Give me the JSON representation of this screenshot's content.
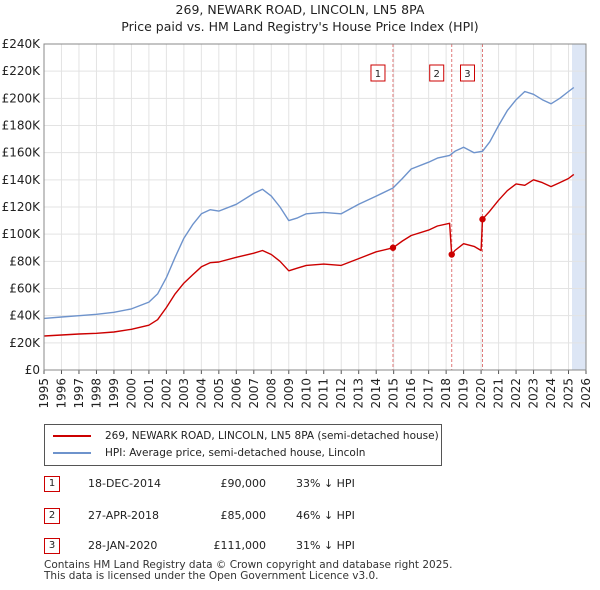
{
  "title_line1": "269, NEWARK ROAD, LINCOLN, LN5 8PA",
  "title_line2": "Price paid vs. HM Land Registry's House Price Index (HPI)",
  "colors": {
    "property": "#cc0000",
    "hpi": "#6e93cc",
    "shade": "#dde6f5",
    "marker": "#cc0000"
  },
  "chart_data": {
    "type": "line",
    "title": "Price paid vs. HM Land Registry's House Price Index (HPI)",
    "xlabel": "",
    "ylabel": "",
    "xlim": [
      1995,
      2026
    ],
    "ylim": [
      0,
      240000
    ],
    "yticks": [
      {
        "value": 0,
        "label": "£0"
      },
      {
        "value": 20000,
        "label": "£20K"
      },
      {
        "value": 40000,
        "label": "£40K"
      },
      {
        "value": 60000,
        "label": "£60K"
      },
      {
        "value": 80000,
        "label": "£80K"
      },
      {
        "value": 100000,
        "label": "£100K"
      },
      {
        "value": 120000,
        "label": "£120K"
      },
      {
        "value": 140000,
        "label": "£140K"
      },
      {
        "value": 160000,
        "label": "£160K"
      },
      {
        "value": 180000,
        "label": "£180K"
      },
      {
        "value": 200000,
        "label": "£200K"
      },
      {
        "value": 220000,
        "label": "£220K"
      },
      {
        "value": 240000,
        "label": "£240K"
      }
    ],
    "xticks": [
      "1995",
      "1996",
      "1997",
      "1998",
      "1999",
      "2000",
      "2001",
      "2002",
      "2003",
      "2004",
      "2005",
      "2006",
      "2007",
      "2008",
      "2009",
      "2010",
      "2011",
      "2012",
      "2013",
      "2014",
      "2015",
      "2016",
      "2017",
      "2018",
      "2019",
      "2020",
      "2021",
      "2022",
      "2023",
      "2024",
      "2025",
      "2026"
    ],
    "shaded_range": [
      2025.2,
      2026
    ],
    "series": [
      {
        "name": "269, NEWARK ROAD, LINCOLN, LN5 8PA (semi-detached house)",
        "color": "#cc0000",
        "x": [
          1995,
          1996,
          1997,
          1998,
          1999,
          2000,
          2001,
          2001.5,
          2002,
          2002.5,
          2003,
          2003.5,
          2004,
          2004.5,
          2005,
          2006,
          2007,
          2007.5,
          2008,
          2008.5,
          2009,
          2009.5,
          2010,
          2011,
          2012,
          2013,
          2014,
          2014.96,
          2015.5,
          2016,
          2017,
          2017.5,
          2018.2,
          2018.32,
          2018.5,
          2019,
          2019.6,
          2020.0,
          2020.08,
          2020.5,
          2021,
          2021.5,
          2022,
          2022.5,
          2023,
          2023.5,
          2024,
          2024.5,
          2025,
          2025.3
        ],
        "values": [
          25000,
          25800,
          26500,
          27000,
          28000,
          30000,
          33000,
          37000,
          46000,
          56000,
          64000,
          70000,
          76000,
          79000,
          79500,
          83000,
          86000,
          88000,
          85000,
          80000,
          73000,
          75000,
          77000,
          78000,
          77000,
          82000,
          87000,
          90000,
          95000,
          99000,
          103000,
          106000,
          108000,
          85000,
          88000,
          93000,
          91000,
          88000,
          111000,
          117000,
          125000,
          132000,
          137000,
          136000,
          140000,
          138000,
          135000,
          138000,
          141000,
          144000
        ]
      },
      {
        "name": "HPI: Average price, semi-detached house, Lincoln",
        "color": "#6e93cc",
        "x": [
          1995,
          1996,
          1997,
          1998,
          1999,
          2000,
          2001,
          2001.5,
          2002,
          2002.5,
          2003,
          2003.5,
          2004,
          2004.5,
          2005,
          2006,
          2007,
          2007.5,
          2008,
          2008.5,
          2009,
          2009.5,
          2010,
          2011,
          2012,
          2013,
          2014,
          2014.96,
          2015.5,
          2016,
          2017,
          2017.5,
          2018.2,
          2018.5,
          2019,
          2019.6,
          2020.08,
          2020.5,
          2021,
          2021.5,
          2022,
          2022.5,
          2023,
          2023.5,
          2024,
          2024.5,
          2025,
          2025.3
        ],
        "values": [
          38000,
          39000,
          40000,
          41000,
          42500,
          45000,
          50000,
          56000,
          68000,
          83000,
          97000,
          107000,
          115000,
          118000,
          117000,
          122000,
          130000,
          133000,
          128000,
          120000,
          110000,
          112000,
          115000,
          116000,
          115000,
          122000,
          128000,
          134000,
          141000,
          148000,
          153000,
          156000,
          158000,
          161000,
          164000,
          160000,
          161000,
          168000,
          180000,
          191000,
          199000,
          205000,
          203000,
          199000,
          196000,
          200000,
          205000,
          208000
        ]
      }
    ],
    "sales": [
      {
        "label": "1",
        "x": 2014.96,
        "value": 90000
      },
      {
        "label": "2",
        "x": 2018.32,
        "value": 85000
      },
      {
        "label": "3",
        "x": 2020.08,
        "value": 111000
      }
    ]
  },
  "legend": {
    "property_label": "269, NEWARK ROAD, LINCOLN, LN5 8PA (semi-detached house)",
    "hpi_label": "HPI: Average price, semi-detached house, Lincoln"
  },
  "transactions": [
    {
      "num": "1",
      "date": "18-DEC-2014",
      "price": "£90,000",
      "hpi": "33% ↓ HPI"
    },
    {
      "num": "2",
      "date": "27-APR-2018",
      "price": "£85,000",
      "hpi": "46% ↓ HPI"
    },
    {
      "num": "3",
      "date": "28-JAN-2020",
      "price": "£111,000",
      "hpi": "31% ↓ HPI"
    }
  ],
  "footer": {
    "line1": "Contains HM Land Registry data © Crown copyright and database right 2025.",
    "line2": "This data is licensed under the Open Government Licence v3.0."
  }
}
